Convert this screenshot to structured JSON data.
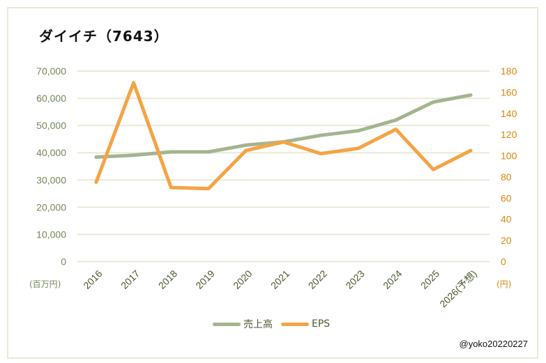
{
  "title": "ダイイチ（7643）",
  "credit": "@yoko20220227",
  "colors": {
    "sales": "#a3b58f",
    "eps": "#f4a445",
    "left_axis_text": "#76875a",
    "right_axis_text": "#d9860e",
    "grid": "#e8ead6",
    "frame": "#e8ead6"
  },
  "axes": {
    "left_unit": "(百万円)",
    "right_unit": "(円)",
    "left_ticks": [
      "0",
      "10,000",
      "20,000",
      "30,000",
      "40,000",
      "50,000",
      "60,000",
      "70,000"
    ],
    "right_ticks": [
      "0",
      "20",
      "40",
      "60",
      "80",
      "100",
      "120",
      "140",
      "160",
      "180"
    ]
  },
  "legend": {
    "sales_label": "売上高",
    "eps_label": "EPS"
  },
  "chart_data": {
    "type": "line",
    "title": "ダイイチ（7643）",
    "categories": [
      "2016",
      "2017",
      "2018",
      "2019",
      "2020",
      "2021",
      "2022",
      "2023",
      "2024",
      "2025",
      "2026(予想)"
    ],
    "series": [
      {
        "name": "売上高",
        "axis": "left",
        "unit": "百万円",
        "values": [
          38400,
          39100,
          40300,
          40300,
          42800,
          44000,
          46400,
          48100,
          52000,
          58600,
          61200
        ]
      },
      {
        "name": "EPS",
        "axis": "right",
        "unit": "円",
        "values": [
          75,
          169,
          70,
          69,
          105,
          113,
          102,
          107,
          125,
          87,
          105
        ]
      }
    ],
    "xlabel": "",
    "ylabel_left": "(百万円)",
    "ylabel_right": "(円)",
    "ylim_left": [
      0,
      70000
    ],
    "ylim_right": [
      0,
      180
    ],
    "grid": true,
    "legend_position": "bottom"
  }
}
